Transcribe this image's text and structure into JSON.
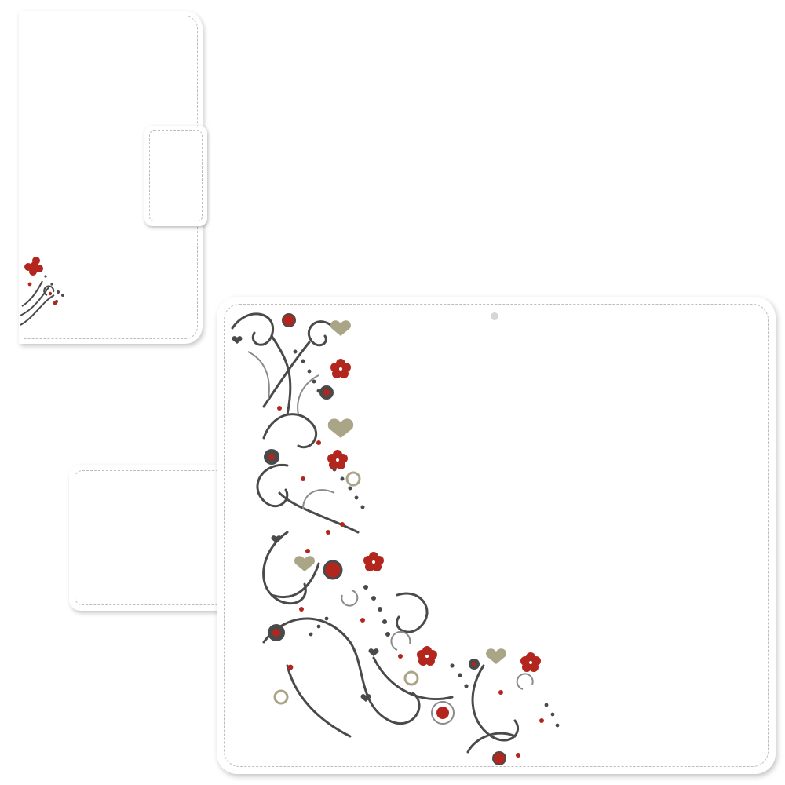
{
  "image": {
    "subject": "flip-wallet-phone-case-mockup",
    "pattern": "floral-swirl",
    "colors": {
      "background": "#ffffff",
      "case": "#ffffff",
      "stitch": "#bdbdbd",
      "swirl": "#4a4a4a",
      "hibiscus": "#b3261e",
      "heart": "#a9a586",
      "ring_gray": "#8a8a8a"
    },
    "icons": [
      "hibiscus-icon",
      "heart-icon",
      "swirl-icon"
    ]
  }
}
